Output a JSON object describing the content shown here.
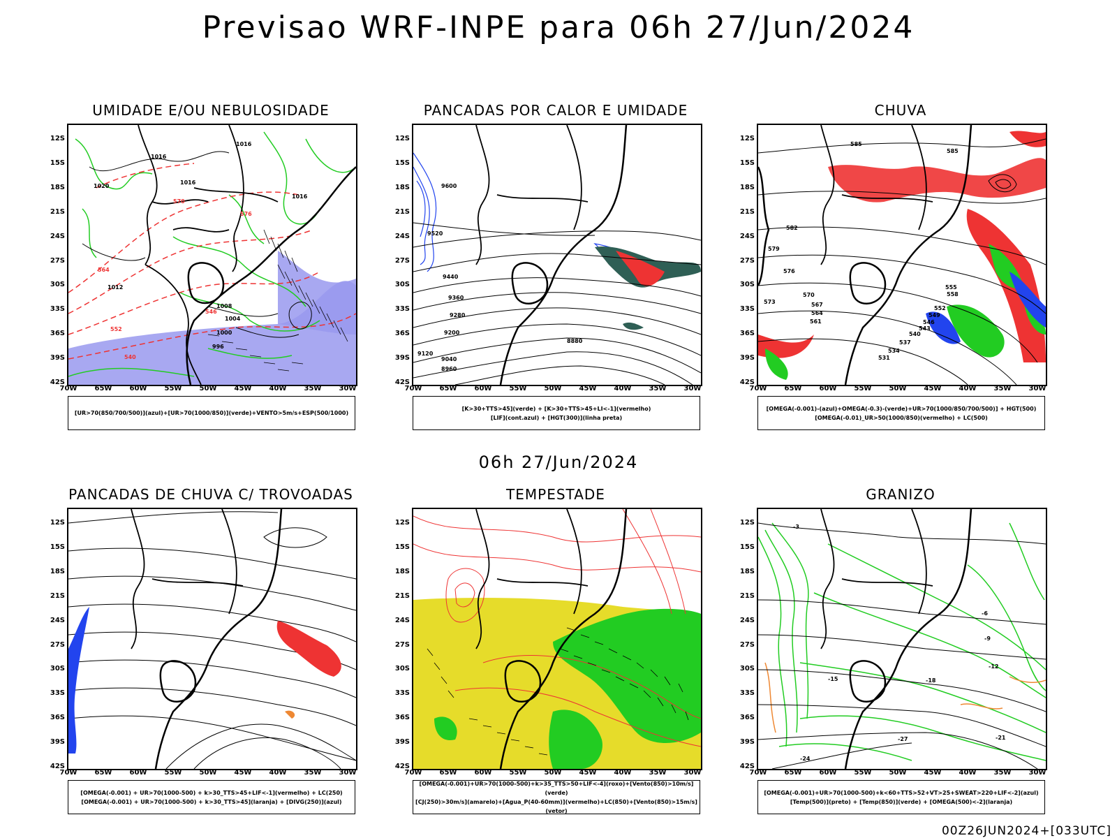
{
  "title": "Previsao WRF-INPE  para 06h 27/Jun/2024",
  "subtitle": "06h 27/Jun/2024",
  "footer": "00Z26JUN2024+[033UTC]",
  "lat_labels": [
    "12S",
    "15S",
    "18S",
    "21S",
    "24S",
    "27S",
    "30S",
    "33S",
    "36S",
    "39S",
    "42S"
  ],
  "lon_labels": [
    "70W",
    "65W",
    "60W",
    "55W",
    "50W",
    "45W",
    "40W",
    "35W",
    "30W"
  ],
  "colors": {
    "red": "#ee3333",
    "green": "#22cc22",
    "blue": "#2244ee",
    "lavender": "#9999ee",
    "yellow": "#e6dc2a",
    "teal": "#2f5f55",
    "orange": "#ee8833"
  },
  "panels": [
    {
      "title": "UMIDADE E/OU NEBULOSIDADE",
      "legend": [
        "[UR>70(850/700/500)](azul)+[UR>70(1000/850)](verde)+VENTO>5m/s+ESP(500/1000)"
      ]
    },
    {
      "title": "PANCADAS POR CALOR E UMIDADE",
      "legend": [
        "[K>30+TTS>45](verde)  +  [K>30+TTS>45+LI<-1](vermelho)",
        "[LIF](cont.azul)  +  [HGT(300)](linha preta)"
      ]
    },
    {
      "title": "CHUVA",
      "legend": [
        "[OMEGA(-0.001)-(azul)+OMEGA(-0.3)-(verde)+UR>70(1000/850/700/500)]  +  HGT(500)",
        "[OMEGA(-0.01)_UR>50(1000/850)(vermelho)  +  LC(500)"
      ]
    },
    {
      "title": "PANCADAS DE CHUVA C/ TROVOADAS",
      "legend": [
        "[OMEGA(-0.001)  +  UR>70(1000-500)  +  k>30_TTS>45+LIF<-1](vermelho)  +  LC(250)",
        "[OMEGA(-0.001)  +  UR>70(1000-500)  +  k>30_TTS>45](laranja)  +  [DIVG(250)](azul)"
      ]
    },
    {
      "title": "TEMPESTADE",
      "legend": [
        "[OMEGA(-0.001)+UR>70(1000-500)+k>35_TTS>50+LIF<-4](roxo)+[Vento(850)>10m/s](verde)",
        "[CJ(250)>30m/s](amarelo)+[Agua_P(40-60mm)](vermelho)+LC(850)+[Vento(850)>15m/s](vetor)"
      ]
    },
    {
      "title": "GRANIZO",
      "legend": [
        "[OMEGA(-0.001)+UR>70(1000-500)+k<60+TTS>52+VT>25+SWEAT>220+LIF<-2](azul)",
        "[Temp(500)](preto)  +  [Temp(850)](verde)  +  [OMEGA(500)<-2](laranja)"
      ]
    }
  ],
  "contour_labels": {
    "umidade": [
      "1016",
      "1016",
      "1016",
      "1016",
      "1020",
      "1012",
      "1008",
      "1004",
      "1000",
      "996",
      "564",
      "570",
      "576",
      "552",
      "546",
      "540"
    ],
    "pancadas_calor": [
      "9600",
      "9520",
      "9440",
      "9360",
      "9280",
      "9200",
      "9120",
      "9040",
      "8960",
      "8880"
    ],
    "chuva": [
      "585",
      "585",
      "582",
      "579",
      "576",
      "573",
      "570",
      "567",
      "564",
      "561",
      "558",
      "555",
      "552",
      "549",
      "546",
      "543",
      "540",
      "537",
      "534",
      "531"
    ],
    "granizo": [
      "-3",
      "-6",
      "-9",
      "-12",
      "-15",
      "-18",
      "-21",
      "-24",
      "-27"
    ]
  }
}
